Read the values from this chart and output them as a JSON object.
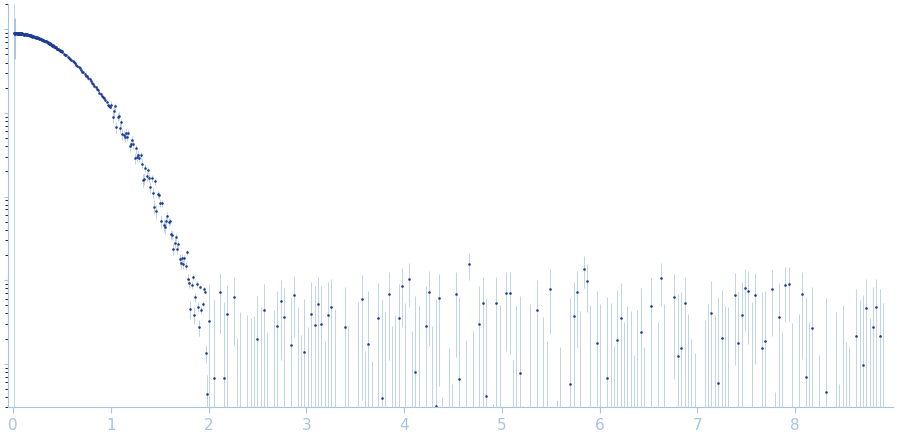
{
  "dot_color": "#1e3d8f",
  "error_color": "#a8c4e0",
  "background_color": "#ffffff",
  "axis_color": "#a8c4e0",
  "label_color": "#a8c4e0",
  "xlim": [
    -0.05,
    9.0
  ],
  "ylim_log": [
    0.0003,
    20.0
  ],
  "xticks": [
    0,
    1,
    2,
    3,
    4,
    5,
    6,
    7,
    8
  ],
  "xtick_labels": [
    "0",
    "1",
    "2",
    "3",
    "4",
    "5",
    "6",
    "7",
    "8"
  ]
}
